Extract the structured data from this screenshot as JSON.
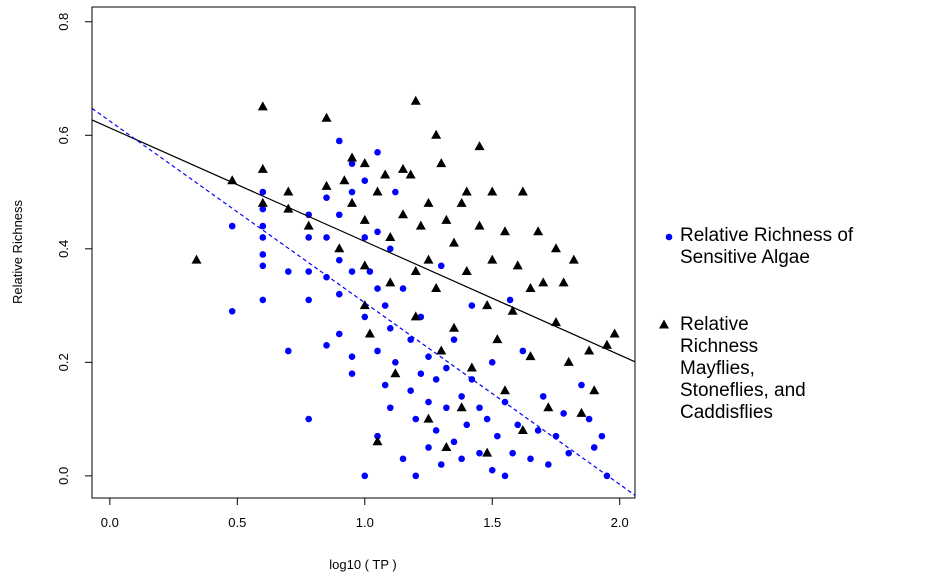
{
  "chart_data": {
    "type": "scatter",
    "xlabel": "log10 ( TP )",
    "ylabel": "Relative Richness",
    "xlim": [
      -0.07,
      2.06
    ],
    "ylim": [
      -0.039,
      0.826
    ],
    "xticks": [
      {
        "value": 0,
        "label": "0.0"
      },
      0.5,
      {
        "value": 1,
        "label": "1.0"
      },
      1.5,
      {
        "value": 2,
        "label": "2.0"
      }
    ],
    "yticks": [
      {
        "value": 0,
        "label": "0.0"
      },
      0.2,
      0.4,
      0.6,
      0.8
    ],
    "series": [
      {
        "name": "Relative Richness of Sensitive Algae",
        "color": "#0000ff",
        "marker": "circle",
        "x": [
          0.48,
          0.48,
          0.6,
          0.6,
          0.6,
          0.6,
          0.6,
          0.6,
          0.6,
          0.7,
          0.7,
          0.78,
          0.78,
          0.78,
          0.78,
          0.78,
          0.85,
          0.85,
          0.85,
          0.85,
          0.9,
          0.9,
          0.9,
          0.9,
          0.9,
          0.95,
          0.95,
          0.95,
          0.95,
          0.95,
          1.0,
          1.0,
          1.0,
          1.0,
          1.02,
          1.05,
          1.05,
          1.05,
          1.05,
          1.05,
          1.08,
          1.08,
          1.1,
          1.1,
          1.1,
          1.12,
          1.12,
          1.15,
          1.15,
          1.18,
          1.18,
          1.2,
          1.2,
          1.22,
          1.22,
          1.25,
          1.25,
          1.25,
          1.28,
          1.28,
          1.3,
          1.3,
          1.32,
          1.32,
          1.35,
          1.35,
          1.38,
          1.38,
          1.4,
          1.42,
          1.42,
          1.45,
          1.45,
          1.48,
          1.5,
          1.5,
          1.52,
          1.55,
          1.55,
          1.57,
          1.58,
          1.6,
          1.62,
          1.65,
          1.68,
          1.7,
          1.72,
          1.75,
          1.78,
          1.8,
          1.85,
          1.88,
          1.9,
          1.93,
          1.95
        ],
        "values": [
          0.29,
          0.44,
          0.5,
          0.47,
          0.44,
          0.42,
          0.39,
          0.37,
          0.31,
          0.36,
          0.22,
          0.1,
          0.36,
          0.42,
          0.46,
          0.31,
          0.49,
          0.42,
          0.35,
          0.23,
          0.59,
          0.46,
          0.38,
          0.32,
          0.25,
          0.18,
          0.21,
          0.36,
          0.5,
          0.55,
          0.0,
          0.28,
          0.42,
          0.52,
          0.36,
          0.57,
          0.43,
          0.33,
          0.22,
          0.07,
          0.3,
          0.16,
          0.4,
          0.26,
          0.12,
          0.5,
          0.2,
          0.33,
          0.03,
          0.15,
          0.24,
          0.0,
          0.1,
          0.18,
          0.28,
          0.05,
          0.13,
          0.21,
          0.17,
          0.08,
          0.37,
          0.02,
          0.12,
          0.19,
          0.06,
          0.24,
          0.14,
          0.03,
          0.09,
          0.3,
          0.17,
          0.12,
          0.04,
          0.1,
          0.01,
          0.2,
          0.07,
          0.0,
          0.13,
          0.31,
          0.04,
          0.09,
          0.22,
          0.03,
          0.08,
          0.14,
          0.02,
          0.07,
          0.11,
          0.04,
          0.16,
          0.1,
          0.05,
          0.07,
          0.0
        ]
      },
      {
        "name": "Relative Richness Mayflies, Stoneflies, and Caddisflies",
        "color": "#000000",
        "marker": "triangle",
        "x": [
          0.34,
          0.48,
          0.6,
          0.6,
          0.6,
          0.7,
          0.7,
          0.78,
          0.85,
          0.85,
          0.9,
          0.92,
          0.95,
          0.95,
          1.0,
          1.0,
          1.0,
          1.0,
          1.02,
          1.05,
          1.05,
          1.08,
          1.1,
          1.1,
          1.12,
          1.15,
          1.15,
          1.18,
          1.2,
          1.2,
          1.2,
          1.22,
          1.25,
          1.25,
          1.25,
          1.28,
          1.28,
          1.3,
          1.3,
          1.32,
          1.32,
          1.35,
          1.35,
          1.38,
          1.38,
          1.4,
          1.4,
          1.42,
          1.45,
          1.45,
          1.48,
          1.48,
          1.5,
          1.5,
          1.52,
          1.55,
          1.55,
          1.58,
          1.6,
          1.62,
          1.62,
          1.65,
          1.65,
          1.68,
          1.7,
          1.72,
          1.75,
          1.75,
          1.78,
          1.8,
          1.82,
          1.85,
          1.88,
          1.9,
          1.95,
          1.98
        ],
        "values": [
          0.38,
          0.52,
          0.65,
          0.54,
          0.48,
          0.5,
          0.47,
          0.44,
          0.63,
          0.51,
          0.4,
          0.52,
          0.56,
          0.48,
          0.55,
          0.45,
          0.37,
          0.3,
          0.25,
          0.06,
          0.5,
          0.53,
          0.42,
          0.34,
          0.18,
          0.54,
          0.46,
          0.53,
          0.66,
          0.36,
          0.28,
          0.44,
          0.48,
          0.1,
          0.38,
          0.6,
          0.33,
          0.55,
          0.22,
          0.45,
          0.05,
          0.41,
          0.26,
          0.48,
          0.12,
          0.5,
          0.36,
          0.19,
          0.58,
          0.44,
          0.3,
          0.04,
          0.5,
          0.38,
          0.24,
          0.43,
          0.15,
          0.29,
          0.37,
          0.5,
          0.08,
          0.33,
          0.21,
          0.43,
          0.34,
          0.12,
          0.27,
          0.4,
          0.34,
          0.2,
          0.38,
          0.11,
          0.22,
          0.15,
          0.23,
          0.25
        ]
      }
    ],
    "fit_lines": [
      {
        "color": "#000000",
        "dash": false,
        "intercept": 0.613,
        "slope": -0.2
      },
      {
        "color": "#0000ff",
        "dash": true,
        "intercept": 0.625,
        "slope": -0.32
      }
    ]
  }
}
